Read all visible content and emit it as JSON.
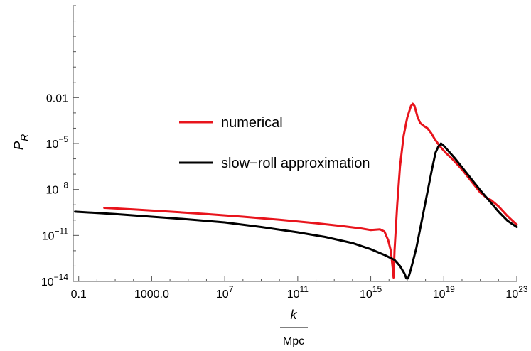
{
  "chart_data": {
    "type": "line",
    "x_scale": "log",
    "y_scale": "log",
    "xlim_exp": [
      -1.3,
      23
    ],
    "ylim_exp": [
      -14,
      4
    ],
    "x_ticks": [
      {
        "exp": -1,
        "label": "0.1"
      },
      {
        "exp": 3,
        "label": "1000.0"
      },
      {
        "exp": 7,
        "base": "10",
        "sup": "7"
      },
      {
        "exp": 11,
        "base": "10",
        "sup": "11"
      },
      {
        "exp": 15,
        "base": "10",
        "sup": "15"
      },
      {
        "exp": 19,
        "base": "10",
        "sup": "19"
      },
      {
        "exp": 23,
        "base": "10",
        "sup": "23"
      }
    ],
    "y_ticks": [
      {
        "exp": -14,
        "base": "10",
        "sup": "−14"
      },
      {
        "exp": -11,
        "base": "10",
        "sup": "−11"
      },
      {
        "exp": -8,
        "base": "10",
        "sup": "−8"
      },
      {
        "exp": -5,
        "base": "10",
        "sup": "−5"
      },
      {
        "exp": -2,
        "label": "0.01"
      }
    ],
    "xlabel": {
      "numerator": "k",
      "denominator": "Mpc"
    },
    "ylabel": {
      "base": "P",
      "sub": "R"
    },
    "legend_position": "center-left",
    "series": [
      {
        "name": "numerical",
        "color": "#e8141c",
        "points_log10": [
          [
            0.4,
            -9.2
          ],
          [
            2.0,
            -9.3
          ],
          [
            4.0,
            -9.45
          ],
          [
            6.0,
            -9.6
          ],
          [
            8.0,
            -9.78
          ],
          [
            10.0,
            -9.98
          ],
          [
            12.0,
            -10.2
          ],
          [
            13.5,
            -10.4
          ],
          [
            14.5,
            -10.55
          ],
          [
            15.0,
            -10.65
          ],
          [
            15.5,
            -10.6
          ],
          [
            15.75,
            -10.75
          ],
          [
            15.95,
            -11.3
          ],
          [
            16.1,
            -12.0
          ],
          [
            16.2,
            -13.1
          ],
          [
            16.25,
            -13.75
          ],
          [
            16.3,
            -12.0
          ],
          [
            16.45,
            -9.0
          ],
          [
            16.6,
            -6.5
          ],
          [
            16.8,
            -4.5
          ],
          [
            17.0,
            -3.3
          ],
          [
            17.2,
            -2.55
          ],
          [
            17.3,
            -2.4
          ],
          [
            17.4,
            -2.55
          ],
          [
            17.55,
            -3.2
          ],
          [
            17.7,
            -3.65
          ],
          [
            17.9,
            -3.85
          ],
          [
            18.1,
            -4.0
          ],
          [
            18.3,
            -4.3
          ],
          [
            18.5,
            -4.7
          ],
          [
            18.8,
            -5.2
          ],
          [
            19.1,
            -5.6
          ],
          [
            19.5,
            -6.05
          ],
          [
            20.0,
            -6.7
          ],
          [
            20.5,
            -7.45
          ],
          [
            21.0,
            -8.2
          ],
          [
            21.3,
            -8.5
          ],
          [
            21.6,
            -8.7
          ],
          [
            22.0,
            -9.1
          ],
          [
            22.5,
            -9.75
          ],
          [
            23.0,
            -10.3
          ]
        ]
      },
      {
        "name": "slow−roll approximation",
        "color": "#000000",
        "points_log10": [
          [
            -1.2,
            -9.45
          ],
          [
            1.0,
            -9.6
          ],
          [
            3.0,
            -9.78
          ],
          [
            5.0,
            -9.95
          ],
          [
            7.0,
            -10.15
          ],
          [
            9.0,
            -10.45
          ],
          [
            11.0,
            -10.8
          ],
          [
            12.5,
            -11.1
          ],
          [
            14.0,
            -11.5
          ],
          [
            15.0,
            -11.9
          ],
          [
            15.8,
            -12.3
          ],
          [
            16.3,
            -12.6
          ],
          [
            16.6,
            -13.0
          ],
          [
            16.85,
            -13.5
          ],
          [
            16.95,
            -13.8
          ],
          [
            17.05,
            -13.8
          ],
          [
            17.2,
            -13.2
          ],
          [
            17.5,
            -11.8
          ],
          [
            17.8,
            -10.0
          ],
          [
            18.1,
            -8.2
          ],
          [
            18.35,
            -6.7
          ],
          [
            18.55,
            -5.6
          ],
          [
            18.7,
            -5.2
          ],
          [
            18.85,
            -5.0
          ],
          [
            19.0,
            -5.15
          ],
          [
            19.3,
            -5.55
          ],
          [
            19.6,
            -5.95
          ],
          [
            20.0,
            -6.55
          ],
          [
            20.5,
            -7.3
          ],
          [
            21.0,
            -8.05
          ],
          [
            21.5,
            -8.75
          ],
          [
            22.0,
            -9.45
          ],
          [
            22.5,
            -10.05
          ],
          [
            23.0,
            -10.45
          ]
        ]
      }
    ]
  }
}
